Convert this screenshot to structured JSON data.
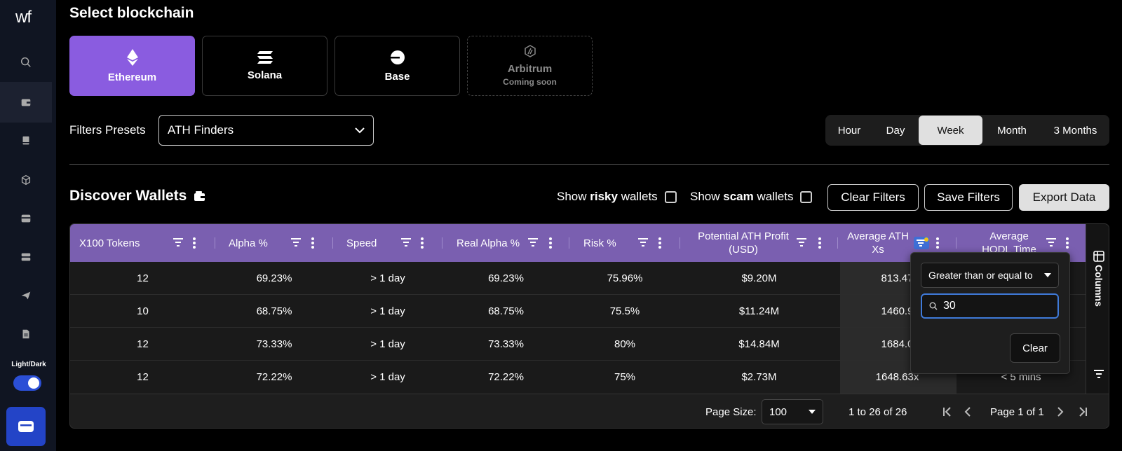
{
  "sidebar": {
    "logo": "wf",
    "toggle_label": "Light/Dark"
  },
  "blockchain": {
    "title": "Select blockchain",
    "chains": [
      {
        "name": "Ethereum",
        "icon": "ethereum-icon"
      },
      {
        "name": "Solana",
        "icon": "solana-icon"
      },
      {
        "name": "Base",
        "icon": "base-icon"
      },
      {
        "name": "Arbitrum",
        "icon": "arbitrum-icon",
        "sub": "Coming soon"
      }
    ],
    "active": "Ethereum"
  },
  "filters": {
    "label": "Filters Presets",
    "preset_value": "ATH Finders",
    "time_options": [
      "Hour",
      "Day",
      "Week",
      "Month",
      "3 Months"
    ],
    "time_active": "Week"
  },
  "discover": {
    "title": "Discover Wallets",
    "show_risky": {
      "prefix": "Show",
      "bold": "risky",
      "suffix": "wallets"
    },
    "show_scam": {
      "prefix": "Show",
      "bold": "scam",
      "suffix": "wallets"
    },
    "clear_filters": "Clear Filters",
    "save_filters": "Save Filters",
    "export_data": "Export Data"
  },
  "table": {
    "columns": [
      "X100 Tokens",
      "Alpha %",
      "Speed",
      "Real Alpha %",
      "Risk %",
      "Potential ATH Profit (USD)",
      "Average ATH Xs",
      "Average HODL Time"
    ],
    "rows": [
      [
        "12",
        "69.23%",
        "> 1 day",
        "69.23%",
        "75.96%",
        "$9.20M",
        "813.47",
        ""
      ],
      [
        "10",
        "68.75%",
        "> 1 day",
        "68.75%",
        "75.5%",
        "$11.24M",
        "1460.9",
        ""
      ],
      [
        "12",
        "73.33%",
        "> 1 day",
        "73.33%",
        "80%",
        "$14.84M",
        "1684.0",
        ""
      ],
      [
        "12",
        "72.22%",
        "> 1 day",
        "72.22%",
        "75%",
        "$2.73M",
        "1648.63x",
        "< 5 mins"
      ]
    ],
    "side_panel": "Columns",
    "footer": {
      "page_size_label": "Page Size:",
      "page_size_value": "100",
      "range": "1 to 26 of 26",
      "page_text": "Page 1 of 1"
    }
  },
  "filter_popup": {
    "operator": "Greater than or equal to",
    "value": "30",
    "clear": "Clear"
  },
  "colors": {
    "accent_purple": "#8a5ce0",
    "header_purple": "#7a5fb0",
    "sidebar_bg": "#101522",
    "toggle_blue": "#2b4fd6"
  }
}
